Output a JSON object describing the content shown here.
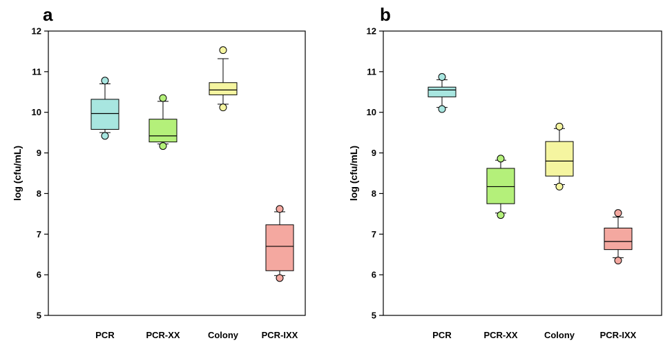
{
  "chart_data": [
    {
      "type": "box",
      "panel": "a",
      "ylabel": "log (cfu/mL)",
      "ylim": [
        5,
        12
      ],
      "yticks": [
        5,
        6,
        7,
        8,
        9,
        10,
        11,
        12
      ],
      "categories": [
        "PCR",
        "PCR-XX",
        "Colony",
        "PCR-IXX"
      ],
      "colors": [
        "#a8e6e0",
        "#b4f07a",
        "#f5f5a0",
        "#f4a8a0"
      ],
      "boxes": [
        {
          "category": "PCR",
          "whisker_low": 9.5,
          "q1": 9.58,
          "median": 9.97,
          "q3": 10.32,
          "whisker_high": 10.7,
          "outliers": [
            9.42,
            10.78
          ]
        },
        {
          "category": "PCR-XX",
          "whisker_low": 9.22,
          "q1": 9.27,
          "median": 9.42,
          "q3": 9.83,
          "whisker_high": 10.27,
          "outliers": [
            9.17,
            10.35
          ]
        },
        {
          "category": "Colony",
          "whisker_low": 10.2,
          "q1": 10.43,
          "median": 10.55,
          "q3": 10.73,
          "whisker_high": 11.32,
          "outliers": [
            10.12,
            11.53
          ]
        },
        {
          "category": "PCR-IXX",
          "whisker_low": 5.98,
          "q1": 6.1,
          "median": 6.7,
          "q3": 7.23,
          "whisker_high": 7.55,
          "outliers": [
            5.92,
            7.62
          ]
        }
      ]
    },
    {
      "type": "box",
      "panel": "b",
      "ylabel": "log (cfu/mL)",
      "ylim": [
        5,
        12
      ],
      "yticks": [
        5,
        6,
        7,
        8,
        9,
        10,
        11,
        12
      ],
      "categories": [
        "PCR",
        "PCR-XX",
        "Colony",
        "PCR-IXX"
      ],
      "colors": [
        "#a8e6e0",
        "#b4f07a",
        "#f5f5a0",
        "#f4a8a0"
      ],
      "boxes": [
        {
          "category": "PCR",
          "whisker_low": 10.12,
          "q1": 10.38,
          "median": 10.55,
          "q3": 10.62,
          "whisker_high": 10.8,
          "outliers": [
            10.08,
            10.87
          ]
        },
        {
          "category": "PCR-XX",
          "whisker_low": 7.52,
          "q1": 7.75,
          "median": 8.17,
          "q3": 8.62,
          "whisker_high": 8.82,
          "outliers": [
            7.47,
            8.86
          ]
        },
        {
          "category": "Colony",
          "whisker_low": 8.22,
          "q1": 8.43,
          "median": 8.8,
          "q3": 9.28,
          "whisker_high": 9.6,
          "outliers": [
            8.17,
            9.65
          ]
        },
        {
          "category": "PCR-IXX",
          "whisker_low": 6.42,
          "q1": 6.62,
          "median": 6.82,
          "q3": 7.15,
          "whisker_high": 7.42,
          "outliers": [
            6.35,
            7.52
          ]
        }
      ]
    }
  ]
}
